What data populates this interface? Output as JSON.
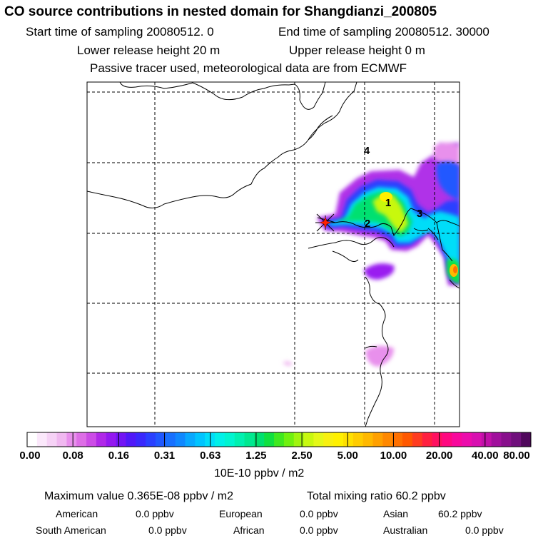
{
  "header": {
    "title": "CO  source contributions in nested domain for Shangdianzi_200805",
    "start_time": "Start time of sampling 20080512.     0",
    "end_time": "End time of sampling 20080512. 30000",
    "lower_height": "Lower release height   20 m",
    "upper_height": "Upper release height    0 m",
    "tracer_note": "Passive tracer used, meteorological data are from ECMWF"
  },
  "map": {
    "markers": [
      {
        "label": "1"
      },
      {
        "label": "2"
      },
      {
        "label": "3"
      },
      {
        "label": "4"
      }
    ],
    "receptor_icon": "star-cross-icon"
  },
  "colorbar": {
    "ticks": [
      "0.00",
      "0.08",
      "0.16",
      "0.31",
      "0.63",
      "1.25",
      "2.50",
      "5.00",
      "10.00",
      "20.00",
      "40.00",
      "80.00"
    ],
    "units": "10E-10 ppbv / m2",
    "colors": [
      "#ffffff",
      "#fbe8fb",
      "#f6d2f6",
      "#f0b8f0",
      "#e890ec",
      "#dd6ee6",
      "#cc4ce6",
      "#b028e8",
      "#9418f0",
      "#7214f4",
      "#5018f8",
      "#3a28fc",
      "#2a40ff",
      "#2058ff",
      "#1870ff",
      "#1088ff",
      "#08a8ff",
      "#00c4ff",
      "#00ddf8",
      "#00f0e8",
      "#00f4d0",
      "#00f0b0",
      "#00e890",
      "#00e070",
      "#10e040",
      "#40e820",
      "#70f010",
      "#a0f410",
      "#c8f810",
      "#e4f818",
      "#f8f010",
      "#fff000",
      "#ffe000",
      "#ffcc00",
      "#ffb800",
      "#ffa000",
      "#ff8800",
      "#ff7000",
      "#ff5800",
      "#ff3c20",
      "#ff2040",
      "#ff1060",
      "#ff0880",
      "#f8089c",
      "#ec0cac",
      "#d810b0",
      "#c010a8",
      "#a0109c",
      "#88108c",
      "#70107c",
      "#50085c"
    ]
  },
  "summary": {
    "max_value": "Maximum value  0.365E-08 ppbv / m2",
    "total": "Total mixing ratio      60.2 ppbv",
    "regions": [
      {
        "name": "American",
        "value": "0.0 ppbv"
      },
      {
        "name": "European",
        "value": "0.0 ppbv"
      },
      {
        "name": "Asian",
        "value": "60.2 ppbv"
      },
      {
        "name": "South American",
        "value": "0.0 ppbv"
      },
      {
        "name": "African",
        "value": "0.0 ppbv"
      },
      {
        "name": "Australian",
        "value": "0.0 ppbv"
      }
    ]
  }
}
